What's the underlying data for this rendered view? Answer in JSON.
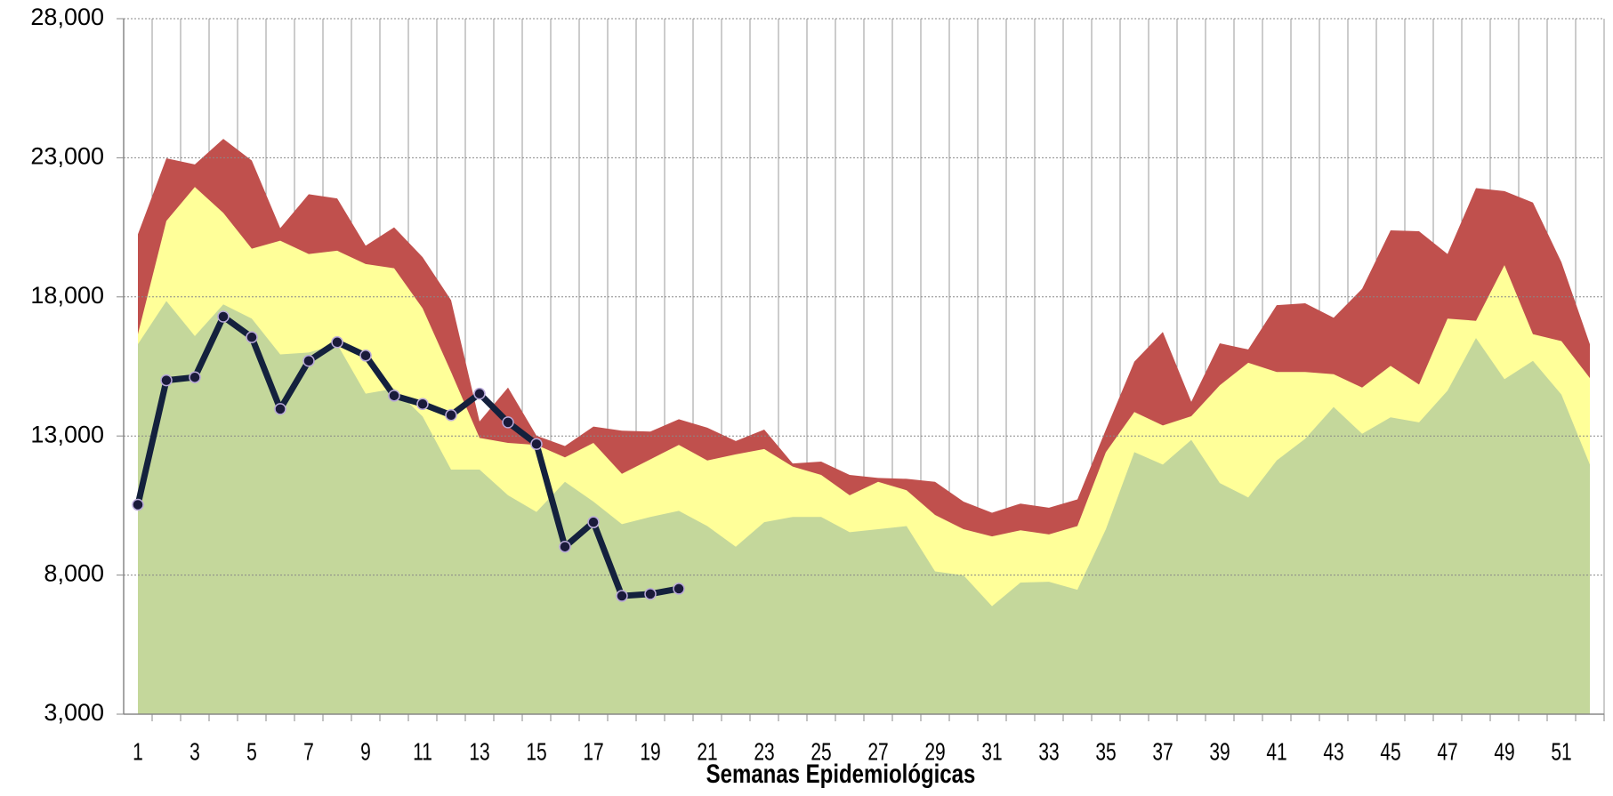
{
  "chart_data": {
    "type": "area",
    "xlabel": "Semanas Epidemiológicas",
    "categories": [
      "1",
      null,
      "3",
      null,
      "5",
      null,
      "7",
      null,
      "9",
      null,
      "11",
      null,
      "13",
      null,
      "15",
      null,
      "17",
      null,
      "19",
      null,
      "21",
      null,
      "23",
      null,
      "25",
      null,
      "27",
      null,
      "29",
      null,
      "31",
      null,
      "33",
      null,
      "35",
      null,
      "37",
      null,
      "39",
      null,
      "41",
      null,
      "43",
      null,
      "45",
      null,
      "47",
      null,
      "49",
      null,
      "51",
      null
    ],
    "series": [
      {
        "color": "#c0504d",
        "values": [
          20250,
          22980,
          22760,
          23680,
          22900,
          20470,
          21690,
          21540,
          19840,
          20500,
          19430,
          17880,
          13520,
          14740,
          13010,
          12640,
          13340,
          13190,
          13160,
          13600,
          13300,
          12820,
          13230,
          12010,
          12080,
          11600,
          11490,
          11460,
          11350,
          10640,
          10240,
          10570,
          10420,
          10720,
          13230,
          15670,
          16740,
          14230,
          16330,
          16110,
          17700,
          17770,
          17250,
          18290,
          20390,
          20360,
          19540,
          21910,
          21800,
          21390,
          19250,
          16300
        ]
      },
      {
        "color": "#ffff99",
        "values": [
          16660,
          20730,
          21950,
          21020,
          19730,
          20020,
          19540,
          19660,
          19180,
          19030,
          17590,
          15300,
          12930,
          12750,
          12680,
          12230,
          12750,
          11640,
          12160,
          12680,
          12120,
          12340,
          12530,
          11900,
          11600,
          10870,
          11350,
          11050,
          10160,
          9650,
          9390,
          9610,
          9460,
          9760,
          12420,
          13860,
          13380,
          13710,
          14820,
          15630,
          15300,
          15300,
          15220,
          14740,
          15520,
          14850,
          17220,
          17140,
          19140,
          16660,
          16410,
          15080
        ]
      },
      {
        "color": "#c4d79b",
        "values": [
          16300,
          17850,
          16590,
          17730,
          17220,
          15930,
          16000,
          16300,
          14520,
          14700,
          13700,
          11790,
          11790,
          10870,
          10270,
          11350,
          10640,
          9830,
          10090,
          10310,
          9760,
          9020,
          9900,
          10090,
          10090,
          9540,
          9650,
          9760,
          8130,
          7990,
          6880,
          7730,
          7760,
          7470,
          9650,
          12420,
          11970,
          12860,
          11310,
          10790,
          12120,
          12900,
          14040,
          13080,
          13670,
          13490,
          14630,
          16520,
          15040,
          15700,
          14490,
          11970
        ]
      },
      {
        "type": "line",
        "color": "#14213d",
        "values": [
          10530,
          15000,
          15110,
          17290,
          16550,
          13970,
          15700,
          16370,
          15890,
          14450,
          14150,
          13750,
          14520,
          13490,
          12710,
          9020,
          9900,
          7250,
          7320,
          7510,
          null,
          null,
          null,
          null,
          null,
          null,
          null,
          null,
          null,
          null,
          null,
          null,
          null,
          null,
          null,
          null,
          null,
          null,
          null,
          null,
          null,
          null,
          null,
          null,
          null,
          null,
          null,
          null,
          null,
          null,
          null,
          null
        ]
      }
    ],
    "ylim": [
      3000,
      28000
    ],
    "yticks": [
      {
        "value": 3000,
        "label": "3,000"
      },
      {
        "value": 8000,
        "label": "8,000"
      },
      {
        "value": 13000,
        "label": "13,000"
      },
      {
        "value": 18000,
        "label": "18,000"
      },
      {
        "value": 23000,
        "label": "23,000"
      },
      {
        "value": 28000,
        "label": "28,000"
      }
    ],
    "grid": true
  }
}
